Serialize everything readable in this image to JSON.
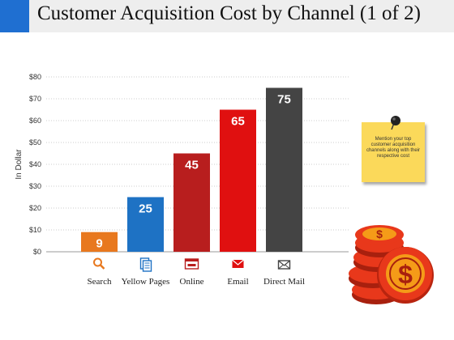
{
  "title": "Customer Acquisition Cost by Channel (1 of 2)",
  "note": "Mention your top customer acquisition channels along with their respective cost",
  "colors": {
    "title_accent": "#1f6fd1",
    "note": "#fbd95a",
    "coin": "#e8381b",
    "coin_face": "#f59b18"
  },
  "chart_data": {
    "type": "bar",
    "title": "",
    "xlabel": "",
    "ylabel": "In Dollar",
    "ylim": [
      0,
      80
    ],
    "y_ticks": [
      "$0",
      "$10",
      "$20",
      "$30",
      "$40",
      "$50",
      "$60",
      "$70",
      "$80"
    ],
    "grid": true,
    "categories": [
      "Search",
      "Yellow Pages",
      "Online",
      "Email",
      "Direct Mail"
    ],
    "values": [
      9,
      25,
      45,
      65,
      75
    ],
    "bar_colors": [
      "#e8781e",
      "#1e72c4",
      "#b81e1e",
      "#e01010",
      "#444444"
    ],
    "category_icons": [
      "search-icon",
      "yellow-pages-icon",
      "online-icon",
      "email-icon",
      "direct-mail-icon"
    ]
  }
}
